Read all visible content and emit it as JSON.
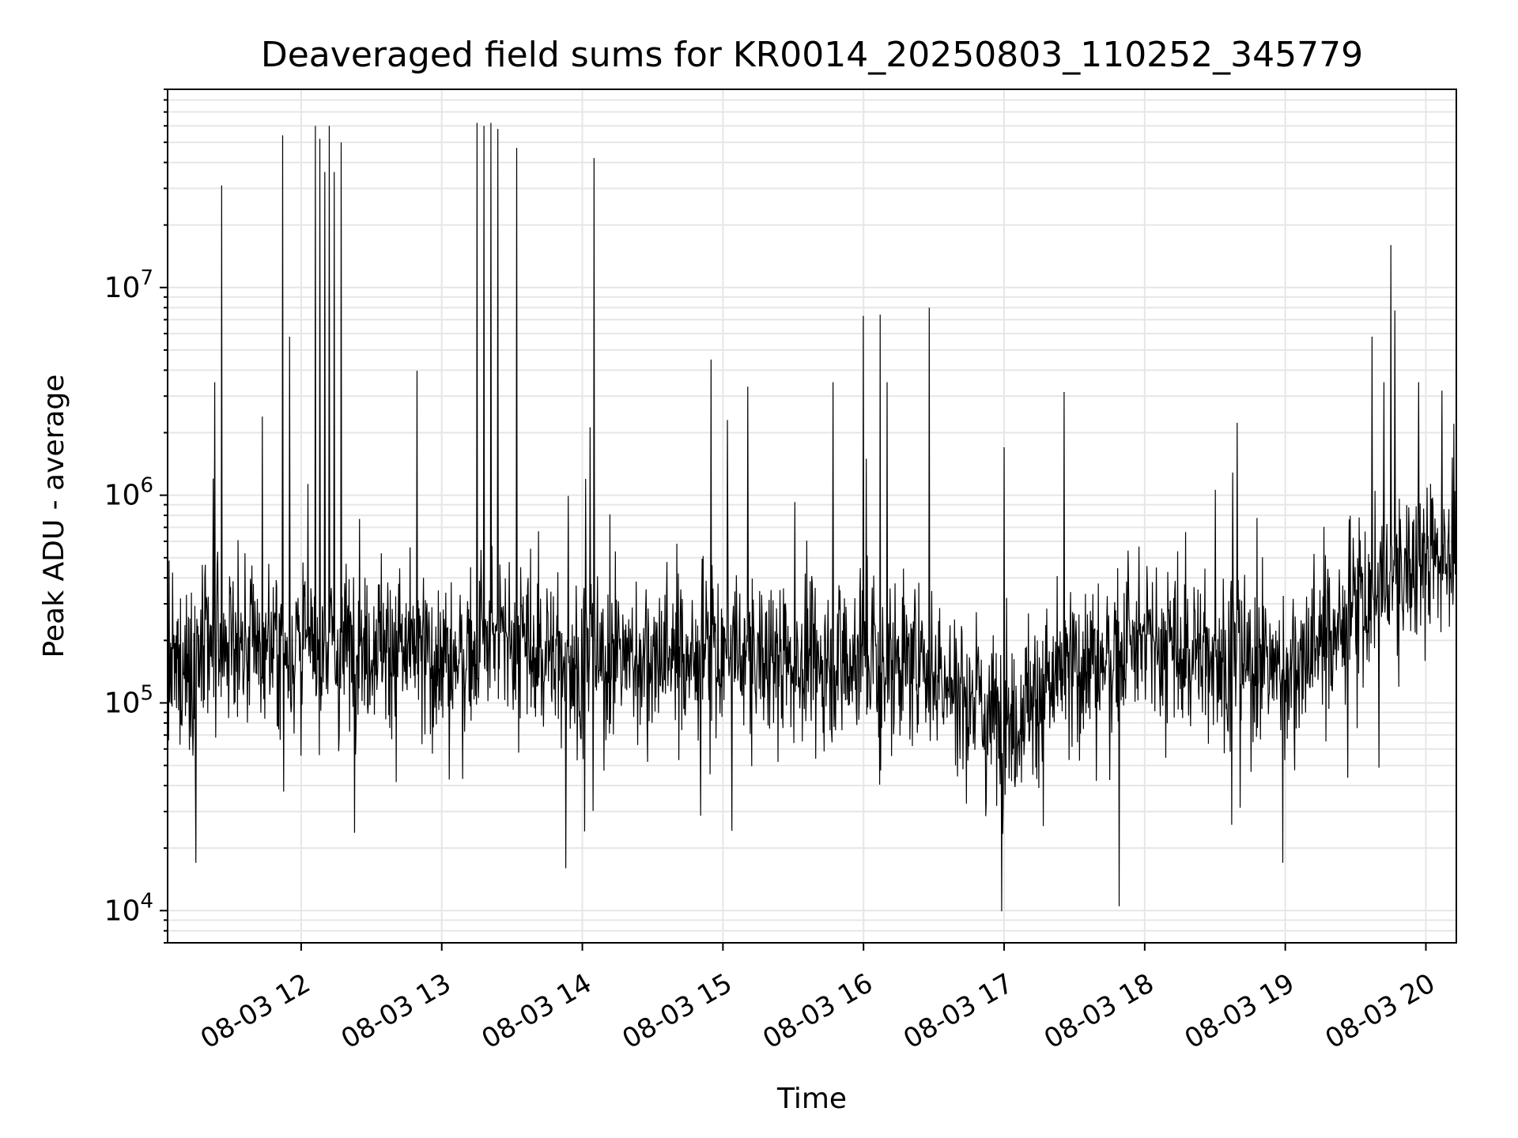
{
  "chart_data": {
    "type": "line",
    "title": "Deaveraged field sums for KR0014_20250803_110252_345779",
    "xlabel": "Time",
    "ylabel": "Peak ADU - average",
    "x_range": [
      "2025-08-03 11:03",
      "2025-08-03 20:13"
    ],
    "ylim": [
      7000,
      90000000
    ],
    "y_scale": "log",
    "grid": true,
    "line_color": "#000000",
    "grid_color": "#e6e6e6",
    "x_ticks": [
      {
        "time": "2025-08-03 12:00",
        "label": "08-03 12"
      },
      {
        "time": "2025-08-03 13:00",
        "label": "08-03 13"
      },
      {
        "time": "2025-08-03 14:00",
        "label": "08-03 14"
      },
      {
        "time": "2025-08-03 15:00",
        "label": "08-03 15"
      },
      {
        "time": "2025-08-03 16:00",
        "label": "08-03 16"
      },
      {
        "time": "2025-08-03 17:00",
        "label": "08-03 17"
      },
      {
        "time": "2025-08-03 18:00",
        "label": "08-03 18"
      },
      {
        "time": "2025-08-03 19:00",
        "label": "08-03 19"
      },
      {
        "time": "2025-08-03 20:00",
        "label": "08-03 20"
      }
    ],
    "y_ticks": [
      {
        "value": 10000,
        "base": "10",
        "exp": "4"
      },
      {
        "value": 100000,
        "base": "10",
        "exp": "5"
      },
      {
        "value": 1000000,
        "base": "10",
        "exp": "6"
      },
      {
        "value": 10000000,
        "base": "10",
        "exp": "7"
      }
    ],
    "peaks": [
      {
        "time": "2025-08-03 11:23",
        "value": 3500000
      },
      {
        "time": "2025-08-03 11:26",
        "value": 31000000
      },
      {
        "time": "2025-08-03 11:52",
        "value": 54000000
      },
      {
        "time": "2025-08-03 11:55",
        "value": 5800000
      },
      {
        "time": "2025-08-03 12:06",
        "value": 60000000
      },
      {
        "time": "2025-08-03 12:08",
        "value": 52000000
      },
      {
        "time": "2025-08-03 12:10",
        "value": 36000000
      },
      {
        "time": "2025-08-03 12:12",
        "value": 60000000
      },
      {
        "time": "2025-08-03 12:14",
        "value": 36000000
      },
      {
        "time": "2025-08-03 12:17",
        "value": 50000000
      },
      {
        "time": "2025-08-03 13:15",
        "value": 62000000
      },
      {
        "time": "2025-08-03 13:18",
        "value": 60000000
      },
      {
        "time": "2025-08-03 13:21",
        "value": 62000000
      },
      {
        "time": "2025-08-03 13:24",
        "value": 58000000
      },
      {
        "time": "2025-08-03 13:32",
        "value": 47000000
      },
      {
        "time": "2025-08-03 14:05",
        "value": 42000000
      },
      {
        "time": "2025-08-03 14:55",
        "value": 4500000
      },
      {
        "time": "2025-08-03 15:02",
        "value": 2300000
      },
      {
        "time": "2025-08-03 15:47",
        "value": 3500000
      },
      {
        "time": "2025-08-03 16:00",
        "value": 7300000
      },
      {
        "time": "2025-08-03 16:07",
        "value": 7400000
      },
      {
        "time": "2025-08-03 16:10",
        "value": 3500000
      },
      {
        "time": "2025-08-03 16:28",
        "value": 8000000
      },
      {
        "time": "2025-08-03 17:00",
        "value": 1700000
      },
      {
        "time": "2025-08-03 19:37",
        "value": 5800000
      },
      {
        "time": "2025-08-03 19:42",
        "value": 3500000
      },
      {
        "time": "2025-08-03 19:45",
        "value": 16000000
      },
      {
        "time": "2025-08-03 19:57",
        "value": 3500000
      }
    ],
    "dips": [
      {
        "time": "2025-08-03 11:15",
        "value": 17000
      },
      {
        "time": "2025-08-03 13:53",
        "value": 16000
      },
      {
        "time": "2025-08-03 17:49",
        "value": 10500
      },
      {
        "time": "2025-08-03 18:59",
        "value": 17000
      }
    ],
    "baseline": [
      {
        "time": "2025-08-03 11:03",
        "value": 130000
      },
      {
        "time": "2025-08-03 11:30",
        "value": 200000
      },
      {
        "time": "2025-08-03 12:00",
        "value": 180000
      },
      {
        "time": "2025-08-03 12:30",
        "value": 200000
      },
      {
        "time": "2025-08-03 13:00",
        "value": 160000
      },
      {
        "time": "2025-08-03 13:30",
        "value": 200000
      },
      {
        "time": "2025-08-03 14:00",
        "value": 150000
      },
      {
        "time": "2025-08-03 14:30",
        "value": 170000
      },
      {
        "time": "2025-08-03 15:00",
        "value": 170000
      },
      {
        "time": "2025-08-03 15:30",
        "value": 160000
      },
      {
        "time": "2025-08-03 16:00",
        "value": 170000
      },
      {
        "time": "2025-08-03 16:30",
        "value": 140000
      },
      {
        "time": "2025-08-03 17:00",
        "value": 80000
      },
      {
        "time": "2025-08-03 17:30",
        "value": 150000
      },
      {
        "time": "2025-08-03 18:00",
        "value": 190000
      },
      {
        "time": "2025-08-03 18:30",
        "value": 170000
      },
      {
        "time": "2025-08-03 19:00",
        "value": 140000
      },
      {
        "time": "2025-08-03 19:30",
        "value": 280000
      },
      {
        "time": "2025-08-03 20:00",
        "value": 500000
      },
      {
        "time": "2025-08-03 20:13",
        "value": 600000
      }
    ]
  }
}
